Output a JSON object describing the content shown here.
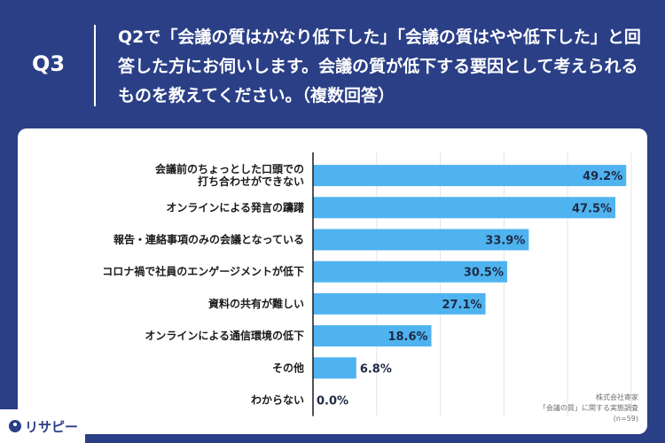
{
  "header": {
    "q_label": "Q3",
    "question": "Q2で「会議の質はかなり低下した」「会議の質はやや低下した」と回答した方にお伺いします。会議の質が低下する要因として考えられるものを教えてください。（複数回答）"
  },
  "footnote": {
    "line1": "株式会社寄家",
    "line2": "「会議の質」に関する実態調査",
    "line3": "(n=59)"
  },
  "logo": {
    "text": "リサピー"
  },
  "colors": {
    "bar": "#4fb3f0",
    "header": "#2a3f86",
    "value_text": "#1f2a44"
  },
  "chart_data": {
    "type": "bar",
    "orientation": "horizontal",
    "categories": [
      [
        "会議前のちょっとした口頭での",
        "打ち合わせができない"
      ],
      [
        "オンラインによる発言の躊躇"
      ],
      [
        "報告・連絡事項のみの会議となっている"
      ],
      [
        "コロナ禍で社員のエンゲージメントが低下"
      ],
      [
        "資料の共有が難しい"
      ],
      [
        "オンラインによる通信環境の低下"
      ],
      [
        "その他"
      ],
      [
        "わからない"
      ]
    ],
    "values": [
      49.2,
      47.5,
      33.9,
      30.5,
      27.1,
      18.6,
      6.8,
      0.0
    ],
    "value_labels": [
      "49.2%",
      "47.5%",
      "33.9%",
      "30.5%",
      "27.1%",
      "18.6%",
      "6.8%",
      "0.0%"
    ],
    "xlim": [
      0,
      50
    ],
    "grid": true
  }
}
